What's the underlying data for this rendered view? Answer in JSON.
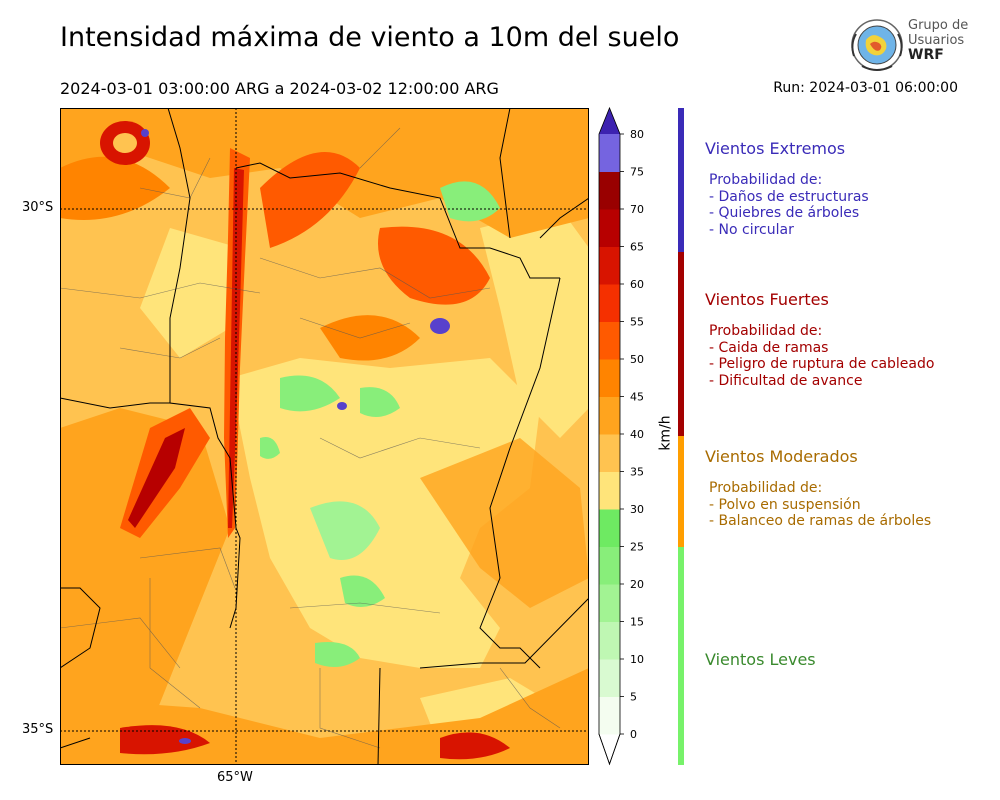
{
  "header": {
    "title": "Intensidad máxima de viento a 10m del suelo",
    "period": "2024-03-01 03:00:00 ARG  a  2024-03-02 12:00:00 ARG",
    "run": "Run: 2024-03-01 06:00:00"
  },
  "logo": {
    "line1": "Grupo de",
    "line2": "Usuarios",
    "line3": "WRF"
  },
  "map": {
    "lat_labels": [
      "30°S",
      "35°S"
    ],
    "lon_labels": [
      "65°W"
    ]
  },
  "colorbar": {
    "unit": "km/h",
    "ticks": [
      "0",
      "5",
      "10",
      "15",
      "20",
      "25",
      "30",
      "35",
      "40",
      "45",
      "50",
      "55",
      "60",
      "65",
      "70",
      "75",
      "80"
    ],
    "colors": [
      "#f4fdf0",
      "#d9fad1",
      "#bff7b3",
      "#a2f393",
      "#88ee7a",
      "#6eea62",
      "#ffe47a",
      "#ffc350",
      "#ffa41e",
      "#ff8400",
      "#ff5a00",
      "#f53000",
      "#d81400",
      "#b70000",
      "#990000",
      "#7564e0",
      "#5841cc",
      "#3d22b0"
    ]
  },
  "categories": [
    {
      "title": "Vientos Extremos",
      "color": "#3a2bb8",
      "bar": "#3a2bb8",
      "lines": [
        "Probabilidad de:",
        "- Daños de estructuras",
        "- Quiebres de árboles",
        "- No circular"
      ]
    },
    {
      "title": "Vientos Fuertes",
      "color": "#a30000",
      "bar": "#a30000",
      "lines": [
        "Probabilidad de:",
        "- Caida de ramas",
        "- Peligro de ruptura de cableado",
        "- Dificultad de avance"
      ]
    },
    {
      "title": "Vientos Moderados",
      "color": "#a86b00",
      "bar": "#ff9e00",
      "lines": [
        "Probabilidad de:",
        "- Polvo en suspensión",
        "- Balanceo de ramas de árboles"
      ]
    },
    {
      "title": "Vientos Leves",
      "color": "#3a8a2e",
      "bar": "#77f26a",
      "lines": []
    }
  ]
}
